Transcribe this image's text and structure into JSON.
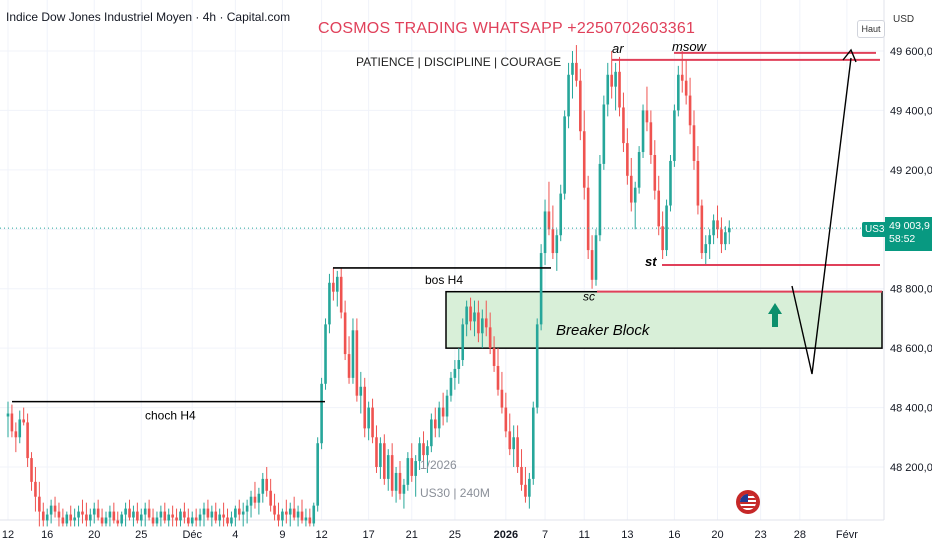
{
  "header": {
    "instrument_title": "Indice Dow Jones Industriel Moyen · 4h · Capital.com",
    "brand_text": "COSMOS TRADING WHATSAPP +2250702603361",
    "subtitle": "PATIENCE  |  DISCIPLINE  |  COURAGE",
    "scale_button": "Haut",
    "currency": "USD"
  },
  "price_tag": {
    "symbol": "US30",
    "price": "49 003,9",
    "countdown": "58:52"
  },
  "watermark": {
    "date": "1/2026",
    "symbol_interval": "US30 | 240M"
  },
  "colors": {
    "up": "#26a69a",
    "down": "#ef5350",
    "zone_fill": "#d8efd8",
    "annot_red": "#e0405a",
    "arrow_green": "#0b8f6c"
  },
  "chart_data": {
    "type": "candlestick",
    "title": "Indice Dow Jones Industriel Moyen · 4h · Capital.com",
    "y_axis_ticks": [
      "49 600,0",
      "49 400,0",
      "49 200,0",
      "49 000,0",
      "48 800,0",
      "48 600,0",
      "48 400,0",
      "48 200,0"
    ],
    "y_tick_values": [
      49600,
      49400,
      49200,
      49000,
      48800,
      48600,
      48400,
      48200
    ],
    "ylim": [
      48000,
      49780
    ],
    "x_axis_ticks": [
      "12",
      "16",
      "20",
      "25",
      "Déc",
      "4",
      "9",
      "12",
      "17",
      "21",
      "25",
      "2026",
      "7",
      "11",
      "13",
      "16",
      "20",
      "23",
      "28",
      "Févr"
    ],
    "x_tick_index": [
      0,
      10,
      22,
      34,
      47,
      58,
      70,
      80,
      92,
      103,
      114,
      127,
      137,
      147,
      158,
      170,
      181,
      192,
      202,
      214
    ],
    "current_price": 49003.9,
    "ohlc": [
      [
        48370,
        48420,
        48300,
        48380
      ],
      [
        48380,
        48410,
        48300,
        48320
      ],
      [
        48320,
        48350,
        48250,
        48300
      ],
      [
        48300,
        48390,
        48280,
        48360
      ],
      [
        48360,
        48400,
        48340,
        48350
      ],
      [
        48350,
        48380,
        48200,
        48230
      ],
      [
        48230,
        48250,
        48120,
        48150
      ],
      [
        48150,
        48200,
        48050,
        48100
      ],
      [
        48100,
        48150,
        48000,
        48050
      ],
      [
        48050,
        48080,
        48000,
        48020
      ],
      [
        48020,
        48060,
        48000,
        48040
      ],
      [
        48040,
        48090,
        48010,
        48070
      ],
      [
        48070,
        48100,
        48030,
        48050
      ],
      [
        48050,
        48080,
        48000,
        48030
      ],
      [
        48030,
        48060,
        48000,
        48010
      ],
      [
        48010,
        48050,
        48000,
        48040
      ],
      [
        48040,
        48070,
        48000,
        48020
      ],
      [
        48020,
        48060,
        48000,
        48030
      ],
      [
        48030,
        48070,
        48000,
        48050
      ],
      [
        48050,
        48090,
        48010,
        48040
      ],
      [
        48040,
        48080,
        48000,
        48020
      ],
      [
        48020,
        48060,
        48000,
        48040
      ],
      [
        48040,
        48080,
        48010,
        48060
      ],
      [
        48060,
        48090,
        48020,
        48030
      ],
      [
        48030,
        48060,
        48000,
        48010
      ],
      [
        48010,
        48050,
        48000,
        48030
      ],
      [
        48030,
        48070,
        48000,
        48050
      ],
      [
        48050,
        48080,
        48010,
        48020
      ],
      [
        48020,
        48050,
        48000,
        48010
      ],
      [
        48010,
        48050,
        48000,
        48040
      ],
      [
        48040,
        48080,
        48000,
        48060
      ],
      [
        48060,
        48090,
        48020,
        48030
      ],
      [
        48030,
        48070,
        48000,
        48050
      ],
      [
        48050,
        48080,
        48010,
        48020
      ],
      [
        48020,
        48060,
        48000,
        48040
      ],
      [
        48040,
        48080,
        48000,
        48060
      ],
      [
        48060,
        48090,
        48020,
        48030
      ],
      [
        48030,
        48060,
        48000,
        48010
      ],
      [
        48010,
        48050,
        48000,
        48030
      ],
      [
        48030,
        48070,
        48000,
        48050
      ],
      [
        48050,
        48080,
        48010,
        48020
      ],
      [
        48020,
        48060,
        48000,
        48040
      ],
      [
        48040,
        48070,
        48000,
        48030
      ],
      [
        48030,
        48060,
        48000,
        48020
      ],
      [
        48020,
        48060,
        48000,
        48050
      ],
      [
        48050,
        48080,
        48010,
        48030
      ],
      [
        48030,
        48060,
        48000,
        48010
      ],
      [
        48010,
        48050,
        48000,
        48030
      ],
      [
        48030,
        48060,
        48000,
        48020
      ],
      [
        48020,
        48060,
        48000,
        48040
      ],
      [
        48040,
        48080,
        48000,
        48060
      ],
      [
        48060,
        48090,
        48020,
        48030
      ],
      [
        48030,
        48070,
        48000,
        48050
      ],
      [
        48050,
        48080,
        48010,
        48020
      ],
      [
        48020,
        48060,
        48000,
        48040
      ],
      [
        48040,
        48080,
        48000,
        48030
      ],
      [
        48030,
        48060,
        48000,
        48010
      ],
      [
        48010,
        48050,
        48000,
        48030
      ],
      [
        48030,
        48070,
        48000,
        48060
      ],
      [
        48060,
        48090,
        48020,
        48040
      ],
      [
        48040,
        48080,
        48000,
        48050
      ],
      [
        48050,
        48090,
        48010,
        48070
      ],
      [
        48070,
        48120,
        48030,
        48100
      ],
      [
        48100,
        48150,
        48060,
        48080
      ],
      [
        48080,
        48130,
        48040,
        48110
      ],
      [
        48110,
        48180,
        48080,
        48160
      ],
      [
        48160,
        48200,
        48100,
        48120
      ],
      [
        48120,
        48160,
        48050,
        48070
      ],
      [
        48070,
        48110,
        48020,
        48040
      ],
      [
        48040,
        48080,
        48000,
        48020
      ],
      [
        48020,
        48060,
        48000,
        48050
      ],
      [
        48050,
        48090,
        48010,
        48040
      ],
      [
        48040,
        48080,
        48000,
        48060
      ],
      [
        48060,
        48100,
        48020,
        48030
      ],
      [
        48030,
        48070,
        48000,
        48050
      ],
      [
        48050,
        48090,
        48010,
        48020
      ],
      [
        48020,
        48060,
        48000,
        48030
      ],
      [
        48030,
        48060,
        48000,
        48010
      ],
      [
        48010,
        48080,
        48000,
        48070
      ],
      [
        48070,
        48300,
        48050,
        48280
      ],
      [
        48280,
        48500,
        48260,
        48480
      ],
      [
        48480,
        48700,
        48460,
        48680
      ],
      [
        48680,
        48850,
        48650,
        48820
      ],
      [
        48820,
        48870,
        48760,
        48790
      ],
      [
        48790,
        48860,
        48740,
        48840
      ],
      [
        48840,
        48870,
        48700,
        48720
      ],
      [
        48720,
        48760,
        48560,
        48580
      ],
      [
        48580,
        48640,
        48480,
        48500
      ],
      [
        48500,
        48700,
        48480,
        48660
      ],
      [
        48660,
        48700,
        48420,
        48440
      ],
      [
        48440,
        48520,
        48380,
        48470
      ],
      [
        48470,
        48500,
        48300,
        48330
      ],
      [
        48330,
        48420,
        48290,
        48400
      ],
      [
        48400,
        48430,
        48280,
        48300
      ],
      [
        48300,
        48340,
        48180,
        48200
      ],
      [
        48200,
        48300,
        48160,
        48280
      ],
      [
        48280,
        48310,
        48140,
        48160
      ],
      [
        48160,
        48260,
        48120,
        48240
      ],
      [
        48240,
        48280,
        48100,
        48120
      ],
      [
        48120,
        48200,
        48080,
        48180
      ],
      [
        48180,
        48220,
        48090,
        48110
      ],
      [
        48110,
        48160,
        48060,
        48140
      ],
      [
        48140,
        48250,
        48120,
        48230
      ],
      [
        48230,
        48280,
        48150,
        48170
      ],
      [
        48170,
        48240,
        48100,
        48220
      ],
      [
        48220,
        48300,
        48190,
        48280
      ],
      [
        48280,
        48320,
        48200,
        48240
      ],
      [
        48240,
        48290,
        48180,
        48270
      ],
      [
        48270,
        48380,
        48250,
        48360
      ],
      [
        48360,
        48400,
        48300,
        48330
      ],
      [
        48330,
        48420,
        48300,
        48400
      ],
      [
        48400,
        48450,
        48340,
        48370
      ],
      [
        48370,
        48460,
        48350,
        48440
      ],
      [
        48440,
        48520,
        48420,
        48500
      ],
      [
        48500,
        48560,
        48460,
        48530
      ],
      [
        48530,
        48600,
        48480,
        48560
      ],
      [
        48560,
        48700,
        48540,
        48680
      ],
      [
        48680,
        48760,
        48640,
        48740
      ],
      [
        48740,
        48770,
        48660,
        48690
      ],
      [
        48690,
        48760,
        48640,
        48720
      ],
      [
        48720,
        48760,
        48620,
        48650
      ],
      [
        48650,
        48730,
        48600,
        48700
      ],
      [
        48700,
        48760,
        48640,
        48670
      ],
      [
        48670,
        48720,
        48580,
        48600
      ],
      [
        48600,
        48640,
        48520,
        48540
      ],
      [
        48540,
        48600,
        48440,
        48460
      ],
      [
        48460,
        48520,
        48380,
        48400
      ],
      [
        48400,
        48450,
        48300,
        48320
      ],
      [
        48320,
        48380,
        48240,
        48260
      ],
      [
        48260,
        48340,
        48200,
        48300
      ],
      [
        48300,
        48340,
        48180,
        48200
      ],
      [
        48200,
        48260,
        48120,
        48140
      ],
      [
        48140,
        48200,
        48080,
        48100
      ],
      [
        48100,
        48180,
        48060,
        48160
      ],
      [
        48160,
        48420,
        48140,
        48400
      ],
      [
        48400,
        48700,
        48380,
        48680
      ],
      [
        48680,
        48950,
        48660,
        48920
      ],
      [
        48920,
        49100,
        48880,
        49060
      ],
      [
        49060,
        49160,
        48980,
        49000
      ],
      [
        49000,
        49080,
        48900,
        48920
      ],
      [
        48920,
        49000,
        48860,
        48980
      ],
      [
        48980,
        49150,
        48960,
        49120
      ],
      [
        49120,
        49400,
        49100,
        49380
      ],
      [
        49380,
        49560,
        49340,
        49520
      ],
      [
        49520,
        49600,
        49440,
        49560
      ],
      [
        49560,
        49620,
        49480,
        49500
      ],
      [
        49500,
        49540,
        49300,
        49330
      ],
      [
        49330,
        49400,
        49100,
        49140
      ],
      [
        49140,
        49180,
        48900,
        48930
      ],
      [
        48930,
        48980,
        48800,
        48830
      ],
      [
        48830,
        49000,
        48810,
        48980
      ],
      [
        48980,
        49250,
        48960,
        49220
      ],
      [
        49220,
        49450,
        49200,
        49420
      ],
      [
        49420,
        49560,
        49380,
        49520
      ],
      [
        49520,
        49600,
        49440,
        49480
      ],
      [
        49480,
        49560,
        49400,
        49530
      ],
      [
        49530,
        49580,
        49380,
        49410
      ],
      [
        49410,
        49460,
        49260,
        49290
      ],
      [
        49290,
        49340,
        49150,
        49180
      ],
      [
        49180,
        49240,
        49060,
        49090
      ],
      [
        49090,
        49160,
        49000,
        49140
      ],
      [
        49140,
        49280,
        49120,
        49260
      ],
      [
        49260,
        49420,
        49240,
        49400
      ],
      [
        49400,
        49480,
        49330,
        49360
      ],
      [
        49360,
        49400,
        49220,
        49250
      ],
      [
        49250,
        49300,
        49100,
        49130
      ],
      [
        49130,
        49180,
        48980,
        49010
      ],
      [
        49010,
        49060,
        48900,
        48930
      ],
      [
        48930,
        49100,
        48910,
        49080
      ],
      [
        49080,
        49250,
        49060,
        49230
      ],
      [
        49230,
        49420,
        49210,
        49400
      ],
      [
        49400,
        49550,
        49380,
        49520
      ],
      [
        49520,
        49600,
        49460,
        49500
      ],
      [
        49500,
        49570,
        49420,
        49450
      ],
      [
        49450,
        49510,
        49320,
        49350
      ],
      [
        49350,
        49400,
        49200,
        49230
      ],
      [
        49230,
        49280,
        49050,
        49080
      ],
      [
        49080,
        49100,
        48900,
        48920
      ],
      [
        48920,
        48980,
        48880,
        48950
      ],
      [
        48950,
        49000,
        48900,
        48980
      ],
      [
        48980,
        49050,
        48950,
        49030
      ],
      [
        49030,
        49080,
        48970,
        49000
      ],
      [
        49000,
        49040,
        48920,
        48950
      ],
      [
        48950,
        49010,
        48930,
        48990
      ],
      [
        48990,
        49030,
        48950,
        49003.9
      ]
    ],
    "annotations": {
      "texts": [
        "choch H4",
        "bos H4",
        "Breaker Block",
        "sc",
        "st",
        "ar",
        "msow"
      ],
      "levels": [
        48420,
        48870,
        48790,
        48600,
        48880,
        49570
      ]
    }
  }
}
